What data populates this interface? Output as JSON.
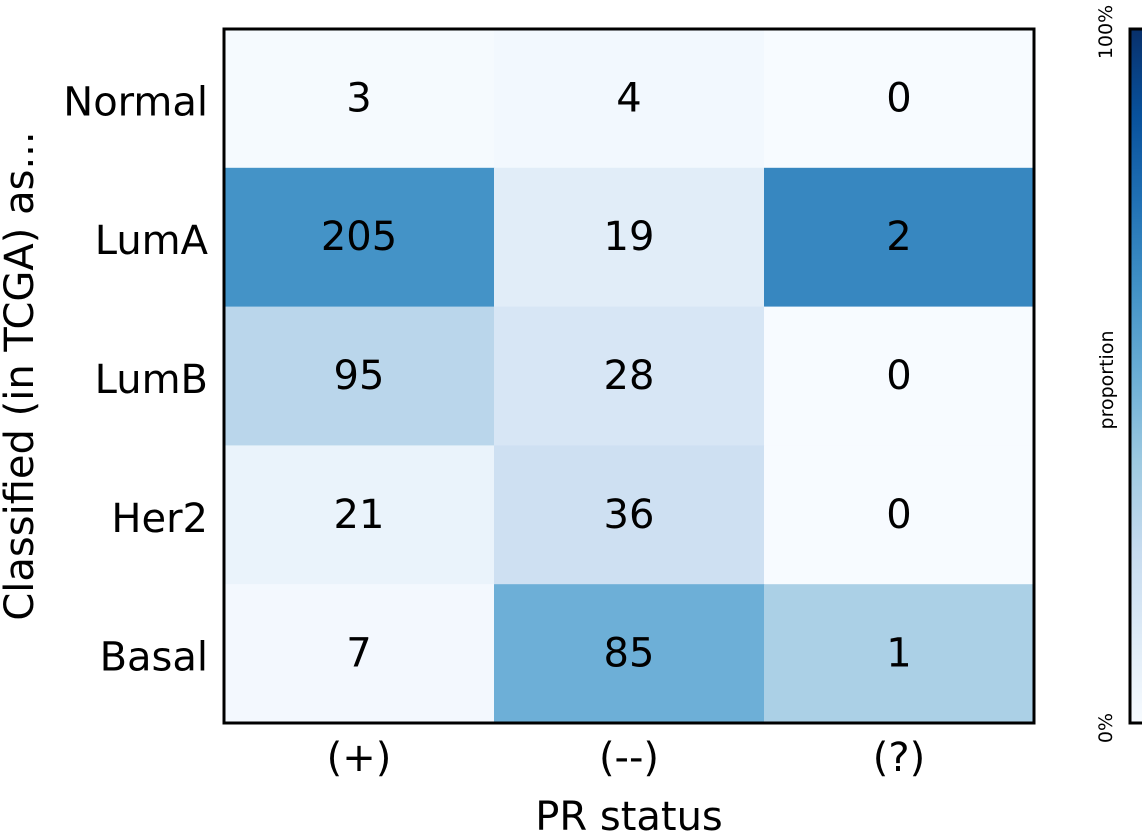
{
  "chart_data": {
    "type": "heatmap",
    "title": "",
    "xlabel": "PR status",
    "ylabel": "Classified (in TCGA) as...",
    "x_categories": [
      "(+)",
      "(--)",
      "(?)"
    ],
    "y_categories": [
      "Normal",
      "LumA",
      "LumB",
      "Her2",
      "Basal"
    ],
    "values": [
      [
        3,
        4,
        0
      ],
      [
        205,
        19,
        2
      ],
      [
        95,
        28,
        0
      ],
      [
        21,
        36,
        0
      ],
      [
        7,
        85,
        1
      ]
    ],
    "colormap": "Blues",
    "colorbar": {
      "label": "proportion",
      "min_label": "0%",
      "max_label": "100%",
      "range": [
        0,
        1
      ]
    },
    "grid": false
  }
}
